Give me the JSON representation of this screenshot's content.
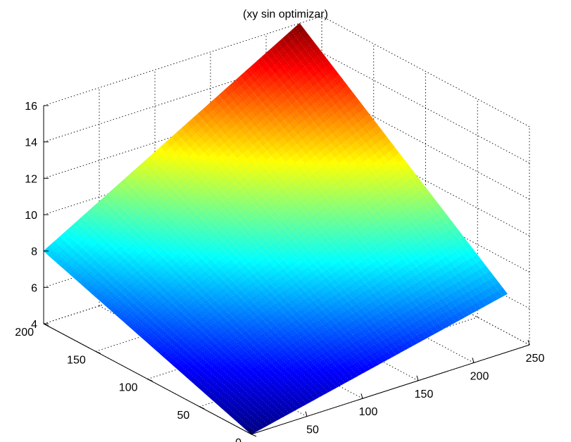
{
  "chart_data": {
    "type": "surface3d",
    "title": "(xy sin optimizar)",
    "xlabel": "",
    "ylabel": "",
    "zlabel": "",
    "x_ticks": [
      0,
      50,
      100,
      150,
      200,
      250
    ],
    "y_ticks": [
      0,
      50,
      100,
      150,
      200
    ],
    "z_ticks": [
      4,
      6,
      8,
      10,
      12,
      14,
      16
    ],
    "xlim": [
      0,
      250
    ],
    "ylim": [
      0,
      200
    ],
    "zlim": [
      4,
      16
    ],
    "grid": true,
    "colormap": "jet",
    "surface_corners": [
      {
        "x": 0,
        "y": 0,
        "z": 4
      },
      {
        "x": 230,
        "y": 0,
        "z": 7.2
      },
      {
        "x": 0,
        "y": 200,
        "z": 8
      },
      {
        "x": 230,
        "y": 200,
        "z": 16
      }
    ]
  }
}
